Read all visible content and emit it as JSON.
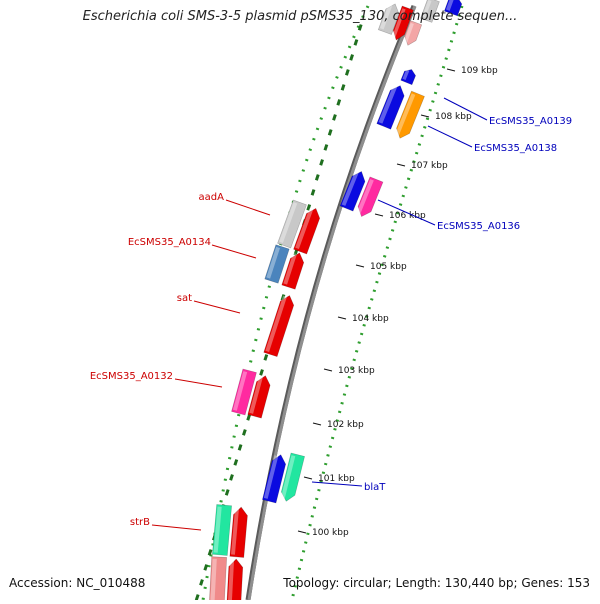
{
  "title": "Escherichia coli SMS-3-5 plasmid pSMS35_130, complete sequen...",
  "footer": {
    "accession": "Accession: NC_010488",
    "topology": "Topology: circular; Length: 130,440 bp; Genes: 153"
  },
  "ruler_labels": [
    "109 kbp",
    "108 kbp",
    "107 kbp",
    "106 kbp",
    "105 kbp",
    "104 kbp",
    "103 kbp",
    "102 kbp",
    "101 kbp",
    "100 kbp"
  ],
  "gene_labels": {
    "right": [
      "EcSMS35_A0139",
      "EcSMS35_A0138",
      "EcSMS35_A0136",
      "blaT"
    ],
    "left": [
      "aadA",
      "EcSMS35_A0134",
      "sat",
      "EcSMS35_A0132",
      "strB"
    ]
  },
  "colors": {
    "backbone": "#8f8f8f",
    "ruler_dot": "#2f9e2f",
    "ruler_tick": "#1f6f1f",
    "label_left": "#cc0000",
    "label_right": "#0000bb",
    "red": "#e60000",
    "blue": "#0a0ae0",
    "orange": "#ff9900",
    "magenta": "#ff2aa0",
    "grey": "#c8c8c8",
    "steelblue": "#4b84bd",
    "seagreen": "#22e6a0",
    "salmon": "#f08a8a"
  }
}
